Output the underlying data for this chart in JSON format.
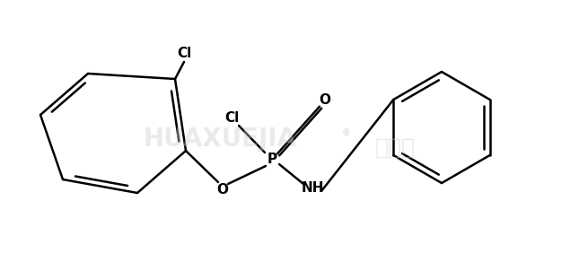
{
  "background_color": "#ffffff",
  "line_color": "#000000",
  "line_width": 1.8,
  "font_size_label": 11,
  "figsize": [
    6.45,
    2.92
  ],
  "dpi": 100,
  "watermark1": "HUAXUEJIA",
  "watermark2": "化学加",
  "label_Cl_top": "Cl",
  "label_Cl_p": "Cl",
  "label_O": "O",
  "label_P": "P",
  "label_O_double": "O",
  "label_NH": "NH"
}
